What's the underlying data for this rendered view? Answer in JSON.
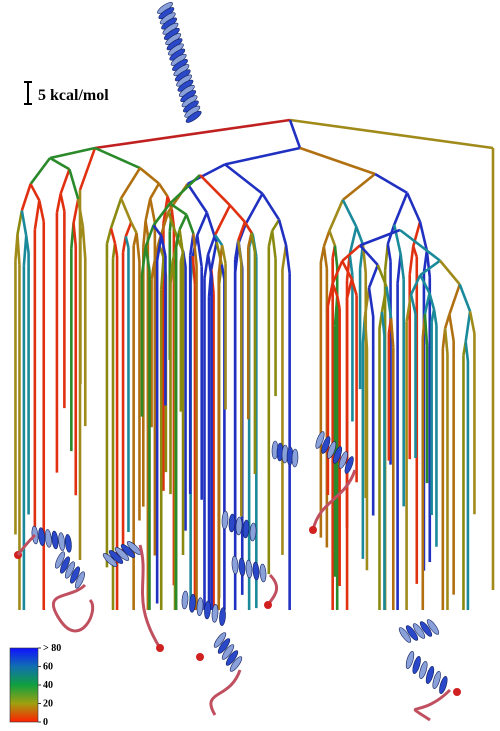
{
  "scale_bar": {
    "label": "5 kcal/mol"
  },
  "colorbar": {
    "ticks": [
      {
        "value": 80,
        "label": "> 80"
      },
      60,
      40,
      20,
      0
    ],
    "range": [
      0,
      80
    ]
  }
}
